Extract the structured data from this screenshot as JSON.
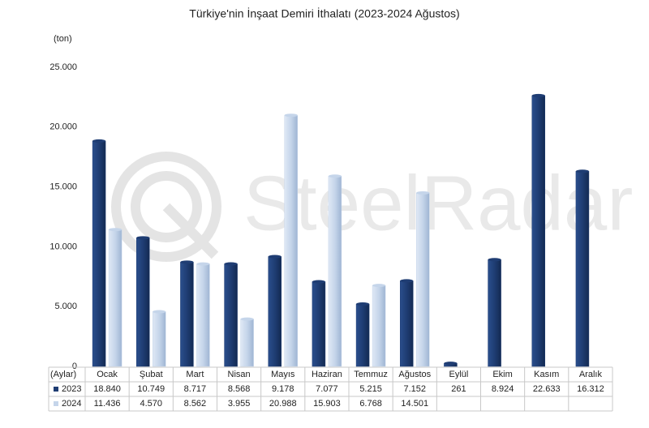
{
  "chart_data": {
    "type": "bar",
    "title": "Türkiye'nin İnşaat Demiri İthalatı (2023-2024 Ağustos)",
    "y_unit": "(ton)",
    "x_label": "(Aylar)",
    "watermark": "SteelRadar",
    "categories": [
      "Ocak",
      "Şubat",
      "Mart",
      "Nisan",
      "Mayıs",
      "Haziran",
      "Temmuz",
      "Ağustos",
      "Eylül",
      "Ekim",
      "Kasım",
      "Aralık"
    ],
    "series": [
      {
        "name": "2023",
        "color": "#1f3d73",
        "values": [
          18840,
          10749,
          8717,
          8568,
          9178,
          7077,
          5215,
          7152,
          261,
          8924,
          22633,
          16312
        ],
        "value_labels": [
          "18.840",
          "10.749",
          "8.717",
          "8.568",
          "9.178",
          "7.077",
          "5.215",
          "7.152",
          "261",
          "8.924",
          "22.633",
          "16.312"
        ]
      },
      {
        "name": "2024",
        "color": "#c5d5ea",
        "values": [
          11436,
          4570,
          8562,
          3955,
          20988,
          15903,
          6768,
          14501,
          null,
          null,
          null,
          null
        ],
        "value_labels": [
          "11.436",
          "4.570",
          "8.562",
          "3.955",
          "20.988",
          "15.903",
          "6.768",
          "14.501",
          null,
          null,
          null,
          null
        ]
      }
    ],
    "ylim": [
      0,
      25000
    ],
    "yticks": [
      0,
      {
        "value": 5000,
        "label": "5.000"
      },
      {
        "value": 10000,
        "label": "10.000"
      },
      {
        "value": 15000,
        "label": "15.000"
      },
      {
        "value": 20000,
        "label": "20.000"
      },
      {
        "value": 25000,
        "label": "25.000"
      }
    ],
    "grid": false
  }
}
